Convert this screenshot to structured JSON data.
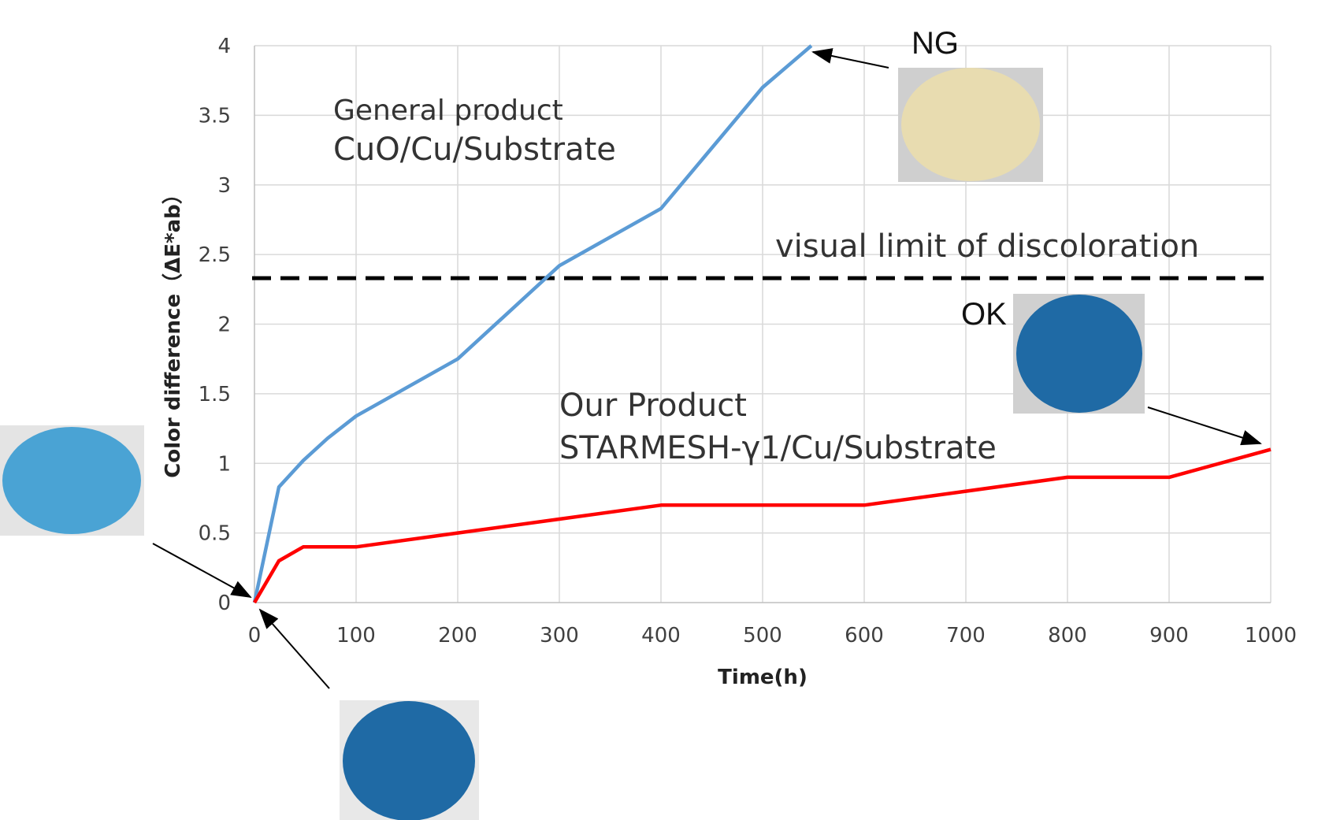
{
  "chart_data": {
    "type": "line",
    "xlabel": "Time(h)",
    "ylabel": "Color difference（ΔE*ab）",
    "xlim": [
      0,
      1000
    ],
    "ylim": [
      0,
      4
    ],
    "x_ticks": [
      "0",
      "100",
      "200",
      "300",
      "400",
      "500",
      "600",
      "700",
      "800",
      "900",
      "1000"
    ],
    "y_ticks": [
      "0",
      "0.5",
      "1",
      "1.5",
      "2",
      "2.5",
      "3",
      "3.5",
      "4"
    ],
    "grid": true,
    "series": [
      {
        "name": "General product CuO/Cu/Substrate",
        "color": "#5b9bd5",
        "points": [
          [
            0,
            0
          ],
          [
            24,
            0.83
          ],
          [
            48,
            1.02
          ],
          [
            72,
            1.18
          ],
          [
            100,
            1.34
          ],
          [
            200,
            1.75
          ],
          [
            300,
            2.42
          ],
          [
            400,
            2.83
          ],
          [
            500,
            3.7
          ],
          [
            548,
            4.0
          ]
        ]
      },
      {
        "name": "Our Product STARMESH-γ1/Cu/Substrate",
        "color": "#ff0000",
        "points": [
          [
            0,
            0
          ],
          [
            24,
            0.3
          ],
          [
            48,
            0.4
          ],
          [
            100,
            0.4
          ],
          [
            200,
            0.5
          ],
          [
            300,
            0.6
          ],
          [
            400,
            0.7
          ],
          [
            500,
            0.7
          ],
          [
            600,
            0.7
          ],
          [
            700,
            0.8
          ],
          [
            800,
            0.9
          ],
          [
            900,
            0.9
          ],
          [
            1000,
            1.1
          ]
        ]
      }
    ],
    "threshold": {
      "label": "visual limit of discoloration",
      "value": 2.33
    },
    "annotations": {
      "general_line1": "General product",
      "general_line2": "CuO/Cu/Substrate",
      "our_line1": "Our Product",
      "our_line2": "STARMESH-γ1/Cu/Substrate",
      "ng": "NG",
      "ok": "OK"
    }
  },
  "colors": {
    "wafer_yellow": "#e8dcb0",
    "wafer_blue_dark": "#1f6aa5",
    "wafer_blue_light": "#4aa3d4"
  }
}
